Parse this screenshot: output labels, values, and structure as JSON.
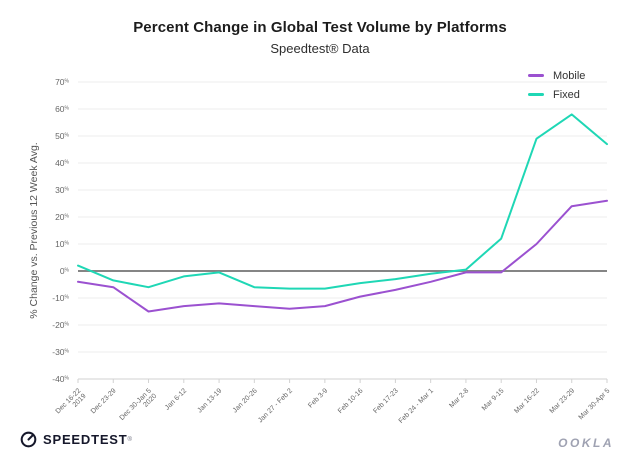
{
  "chart": {
    "title": "Percent Change in Global Test Volume by Platforms",
    "subtitle": "Speedtest® Data"
  },
  "chart_data": {
    "type": "line",
    "categories": [
      "Dec 16-22\n2019",
      "Dec 23-29",
      "Dec 30-Jan 5\n2020",
      "Jan 6-12",
      "Jan 13-19",
      "Jan 20-26",
      "Jan 27 - Feb 2",
      "Feb 3-9",
      "Feb 10-16",
      "Feb 17-23",
      "Feb 24 - Mar 1",
      "Mar 2-8",
      "Mar 9-15",
      "Mar 16-22",
      "Mar 23-29",
      "Mar 30-Apr 5"
    ],
    "series": [
      {
        "name": "Mobile",
        "color": "#9b51d0",
        "values": [
          -4,
          -6,
          -15,
          -13,
          -12,
          -13,
          -14,
          -13,
          -9.5,
          -7,
          -4,
          -0.5,
          -0.5,
          10,
          24,
          26
        ]
      },
      {
        "name": "Fixed",
        "color": "#1fd7b5",
        "values": [
          2,
          -3.5,
          -6,
          -2,
          -0.5,
          -6,
          -6.5,
          -6.5,
          -4.5,
          -3,
          -1,
          0.5,
          12,
          49,
          58,
          47
        ]
      }
    ],
    "xlabel": "",
    "ylabel": "% Change vs. Previous 12 Week Avg.",
    "ylim": [
      -40,
      70
    ],
    "yticks": [
      70,
      60,
      50,
      40,
      30,
      20,
      10,
      0,
      -10,
      -20,
      -30,
      -40
    ],
    "ytick_suffix": "%",
    "grid": true,
    "zero_line": true,
    "legend_position": "top-right"
  },
  "footer": {
    "speedtest_label": "SPEEDTEST",
    "speedtest_mark": "®",
    "ookla_label": "OOKLA"
  },
  "colors": {
    "mobile_line": "#9b51d0",
    "fixed_line": "#1fd7b5",
    "zero_line": "#858585",
    "gridline": "#ececec",
    "axis_line": "#d2d2d2",
    "tick_label": "#666666",
    "title_text": "#1c1c1c",
    "ookla_gray": "#9fa2b2",
    "speedtest_dark": "#16182b"
  }
}
